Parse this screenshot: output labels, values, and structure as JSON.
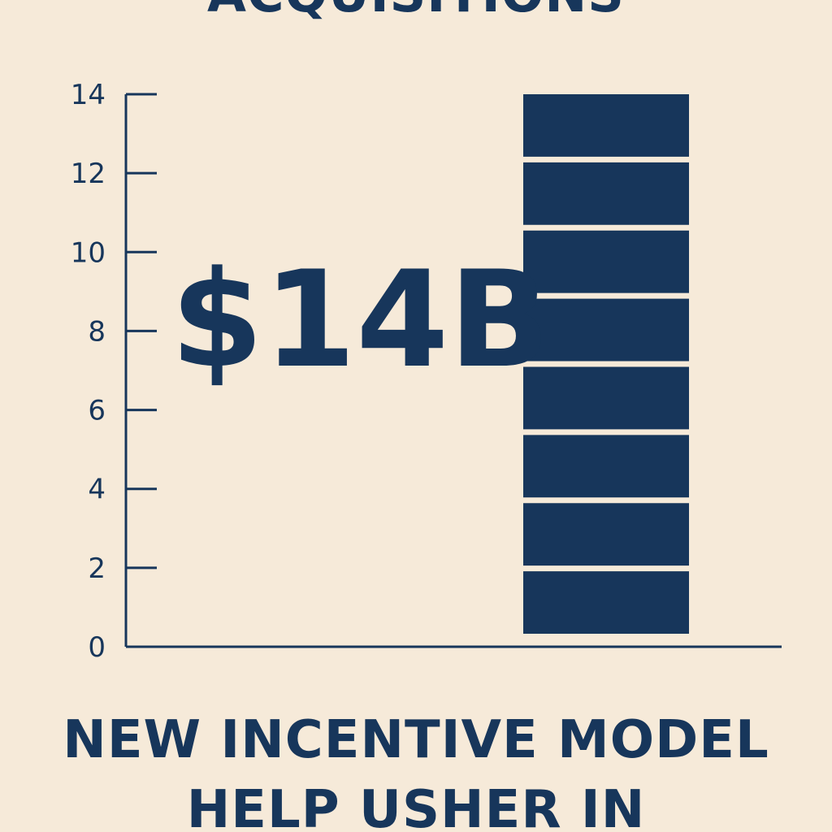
{
  "header": {
    "title": "ACQUISITIONS"
  },
  "footer": {
    "line1": "NEW INCENTIVE MODEL",
    "line2": "HELP USHER IN"
  },
  "colors": {
    "background": "#f6ead9",
    "accent": "#17365b"
  },
  "chart_data": {
    "type": "bar",
    "categories": [
      ""
    ],
    "values": [
      14
    ],
    "annotation": "$14B",
    "ylim": [
      0,
      14
    ],
    "yticks": [
      0,
      2,
      4,
      6,
      8,
      10,
      12,
      14
    ],
    "bar_segments": 8,
    "grid": false,
    "legend": "none"
  }
}
